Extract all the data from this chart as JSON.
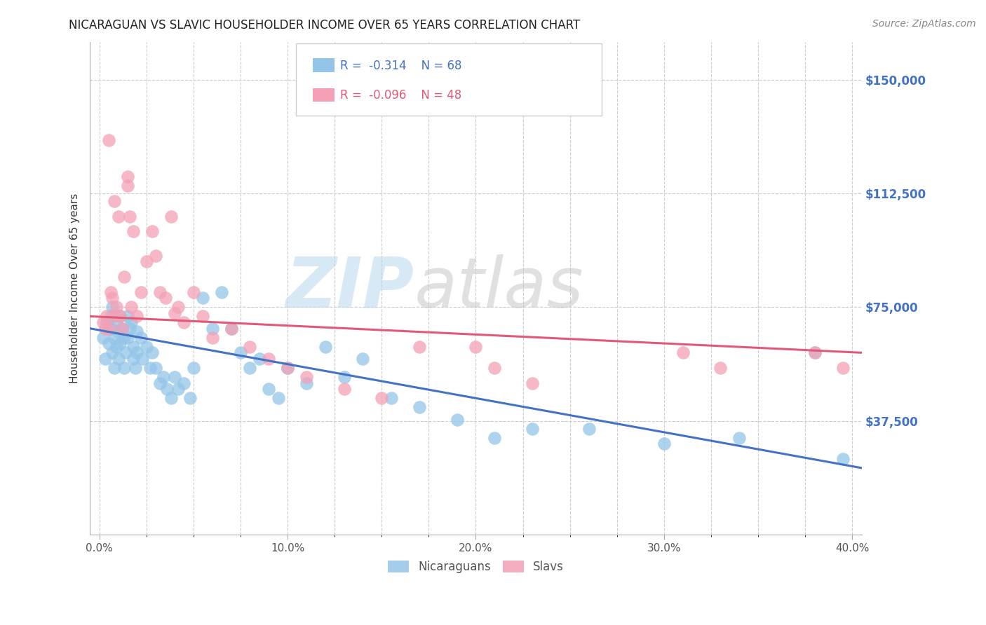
{
  "title": "NICARAGUAN VS SLAVIC HOUSEHOLDER INCOME OVER 65 YEARS CORRELATION CHART",
  "source": "Source: ZipAtlas.com",
  "ylabel": "Householder Income Over 65 years",
  "xlabel_labels": [
    "0.0%",
    "10.0%",
    "20.0%",
    "30.0%",
    "40.0%"
  ],
  "xlabel_tick_vals": [
    0.0,
    0.1,
    0.2,
    0.3,
    0.4
  ],
  "xlabel_minor_vals": [
    0.025,
    0.05,
    0.075,
    0.125,
    0.15,
    0.175,
    0.225,
    0.25,
    0.275,
    0.325,
    0.35,
    0.375
  ],
  "ylabel_ticks": [
    "$37,500",
    "$75,000",
    "$112,500",
    "$150,000"
  ],
  "ylabel_tick_vals": [
    37500,
    75000,
    112500,
    150000
  ],
  "xlim": [
    -0.005,
    0.405
  ],
  "ylim": [
    0,
    162500
  ],
  "nicaraguan_color": "#93C5E8",
  "slavic_color": "#F4A0B5",
  "nicaraguan_line_color": "#4472C4",
  "slavic_line_color": "#E05A78",
  "R_nicaraguan": -0.314,
  "N_nicaraguan": 68,
  "R_slavic": -0.096,
  "N_slavic": 48,
  "watermark_zip": "ZIP",
  "watermark_atlas": "atlas",
  "background_color": "#FFFFFF",
  "grid_color": "#CCCCCC",
  "title_color": "#222222",
  "nic_line_y0": 68000,
  "nic_line_y1": 22000,
  "slav_line_y0": 72000,
  "slav_line_y1": 60000,
  "nicaraguan_x": [
    0.002,
    0.003,
    0.004,
    0.005,
    0.006,
    0.006,
    0.007,
    0.007,
    0.008,
    0.008,
    0.009,
    0.009,
    0.01,
    0.01,
    0.011,
    0.011,
    0.012,
    0.013,
    0.013,
    0.014,
    0.015,
    0.015,
    0.016,
    0.017,
    0.018,
    0.018,
    0.019,
    0.02,
    0.02,
    0.022,
    0.023,
    0.025,
    0.027,
    0.028,
    0.03,
    0.032,
    0.034,
    0.036,
    0.038,
    0.04,
    0.042,
    0.045,
    0.048,
    0.05,
    0.055,
    0.06,
    0.065,
    0.07,
    0.075,
    0.08,
    0.085,
    0.09,
    0.095,
    0.1,
    0.11,
    0.12,
    0.13,
    0.14,
    0.155,
    0.17,
    0.19,
    0.21,
    0.23,
    0.26,
    0.3,
    0.34,
    0.38,
    0.395
  ],
  "nicaraguan_y": [
    65000,
    58000,
    70000,
    63000,
    72000,
    68000,
    75000,
    60000,
    65000,
    55000,
    70000,
    62000,
    67000,
    58000,
    72000,
    63000,
    68000,
    65000,
    55000,
    60000,
    72000,
    65000,
    68000,
    70000,
    62000,
    58000,
    55000,
    67000,
    60000,
    65000,
    58000,
    62000,
    55000,
    60000,
    55000,
    50000,
    52000,
    48000,
    45000,
    52000,
    48000,
    50000,
    45000,
    55000,
    78000,
    68000,
    80000,
    68000,
    60000,
    55000,
    58000,
    48000,
    45000,
    55000,
    50000,
    62000,
    52000,
    58000,
    45000,
    42000,
    38000,
    32000,
    35000,
    35000,
    30000,
    32000,
    60000,
    25000
  ],
  "slavic_x": [
    0.002,
    0.003,
    0.004,
    0.005,
    0.006,
    0.007,
    0.008,
    0.009,
    0.01,
    0.011,
    0.012,
    0.013,
    0.015,
    0.016,
    0.017,
    0.018,
    0.02,
    0.022,
    0.025,
    0.028,
    0.03,
    0.032,
    0.035,
    0.038,
    0.042,
    0.045,
    0.05,
    0.055,
    0.06,
    0.07,
    0.08,
    0.09,
    0.1,
    0.11,
    0.13,
    0.15,
    0.17,
    0.2,
    0.21,
    0.23,
    0.31,
    0.33,
    0.38,
    0.395,
    0.005,
    0.008,
    0.015,
    0.04
  ],
  "slavic_y": [
    70000,
    68000,
    72000,
    130000,
    80000,
    78000,
    110000,
    75000,
    105000,
    72000,
    68000,
    85000,
    115000,
    105000,
    75000,
    100000,
    72000,
    80000,
    90000,
    100000,
    92000,
    80000,
    78000,
    105000,
    75000,
    70000,
    80000,
    72000,
    65000,
    68000,
    62000,
    58000,
    55000,
    52000,
    48000,
    45000,
    62000,
    62000,
    55000,
    50000,
    60000,
    55000,
    60000,
    55000,
    68000,
    72000,
    118000,
    73000
  ]
}
